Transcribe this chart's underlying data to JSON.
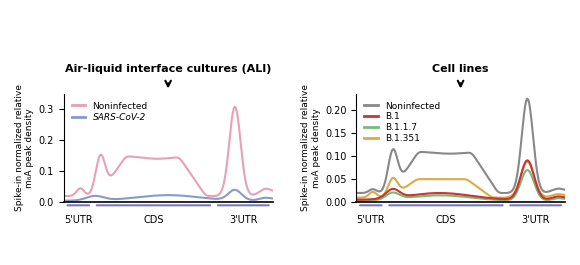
{
  "title_left": "Air-liquid interface cultures (ALI)",
  "title_right": "Cell lines",
  "ylabel_left": "Spike-in normalized relative\nm₆A peak density",
  "ylabel_right": "Spike-in normalized relative\nm₆A peak density",
  "xlabel_regions": [
    "5'UTR",
    "CDS",
    "3'UTR"
  ],
  "ylim_left": [
    0,
    0.35
  ],
  "ylim_right": [
    0,
    0.235
  ],
  "yticks_left": [
    0,
    0.1,
    0.2,
    0.3
  ],
  "yticks_right": [
    0,
    0.05,
    0.1,
    0.15,
    0.2
  ],
  "legend_left": [
    {
      "label": "Noninfected",
      "color": "#e8a0b0"
    },
    {
      "label": "SARS-CoV-2",
      "color": "#8899cc"
    }
  ],
  "legend_right": [
    {
      "label": "Noninfected",
      "color": "#888888"
    },
    {
      "label": "B.1",
      "color": "#cc3333"
    },
    {
      "label": "B.1.1.7",
      "color": "#77bb77"
    },
    {
      "label": "B.1.351",
      "color": "#ddaa44"
    }
  ],
  "bar_color": "#7777bb",
  "region_bar_colors": [
    "#7777bb",
    "#7777bb",
    "#7777bb"
  ],
  "n_points": 200
}
